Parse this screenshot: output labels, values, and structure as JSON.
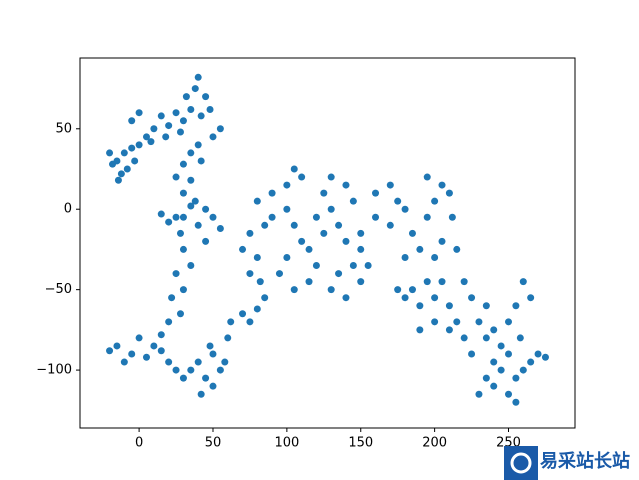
{
  "chart_data": {
    "type": "scatter",
    "color": "#1f77b4",
    "x": [
      -15,
      -10,
      -18,
      -12,
      -5,
      -20,
      -8,
      -14,
      -3,
      0,
      5,
      -5,
      0,
      10,
      15,
      8,
      20,
      25,
      18,
      30,
      28,
      35,
      32,
      38,
      40,
      45,
      48,
      42,
      55,
      50,
      40,
      35,
      42,
      30,
      35,
      25,
      30,
      38,
      45,
      30,
      20,
      28,
      40,
      50,
      55,
      35,
      25,
      15,
      45,
      30,
      35,
      25,
      30,
      22,
      28,
      20,
      15,
      10,
      0,
      -5,
      -15,
      -20,
      -10,
      5,
      15,
      20,
      25,
      30,
      35,
      40,
      45,
      50,
      42,
      55,
      50,
      58,
      48,
      60,
      62,
      70,
      75,
      80,
      85,
      82,
      75,
      80,
      70,
      75,
      85,
      90,
      80,
      90,
      100,
      105,
      110,
      100,
      105,
      110,
      100,
      95,
      105,
      115,
      120,
      115,
      125,
      120,
      130,
      125,
      130,
      140,
      145,
      135,
      140,
      150,
      145,
      135,
      130,
      140,
      150,
      155,
      150,
      160,
      160,
      170,
      175,
      180,
      170,
      185,
      190,
      180,
      195,
      200,
      205,
      195,
      210,
      212,
      205,
      215,
      200,
      195,
      185,
      180,
      175,
      190,
      200,
      205,
      210,
      200,
      190,
      210,
      215,
      220,
      225,
      230,
      225,
      220,
      235,
      240,
      250,
      255,
      260,
      265,
      258,
      250,
      245,
      240,
      235,
      230,
      250,
      255,
      265,
      270,
      275,
      260,
      255,
      245,
      240,
      235
    ],
    "values": [
      30,
      35,
      28,
      22,
      38,
      35,
      25,
      18,
      30,
      40,
      45,
      55,
      60,
      50,
      58,
      42,
      52,
      60,
      45,
      55,
      48,
      62,
      70,
      75,
      82,
      70,
      62,
      58,
      50,
      45,
      40,
      35,
      30,
      28,
      18,
      20,
      10,
      5,
      0,
      -5,
      -8,
      -15,
      -10,
      -5,
      -12,
      2,
      -5,
      -3,
      -20,
      -25,
      -35,
      -40,
      -50,
      -55,
      -65,
      -70,
      -78,
      -85,
      -80,
      -90,
      -85,
      -88,
      -95,
      -92,
      -88,
      -95,
      -100,
      -105,
      -100,
      -95,
      -105,
      -110,
      -115,
      -100,
      -90,
      -95,
      -85,
      -80,
      -70,
      -65,
      -70,
      -62,
      -55,
      -45,
      -40,
      -30,
      -25,
      -15,
      -10,
      -5,
      5,
      10,
      15,
      25,
      20,
      0,
      -10,
      -20,
      -30,
      -40,
      -50,
      -45,
      -35,
      -25,
      -15,
      -5,
      0,
      10,
      20,
      15,
      5,
      -10,
      -20,
      -25,
      -35,
      -40,
      -50,
      -55,
      -45,
      -35,
      -15,
      -5,
      10,
      15,
      5,
      0,
      -10,
      -15,
      -25,
      -30,
      -5,
      5,
      15,
      20,
      10,
      -5,
      -20,
      -25,
      -30,
      -45,
      -50,
      -55,
      -50,
      -60,
      -55,
      -45,
      -60,
      -70,
      -75,
      -75,
      -70,
      -80,
      -90,
      -70,
      -55,
      -45,
      -60,
      -75,
      -70,
      -60,
      -45,
      -55,
      -80,
      -90,
      -100,
      -110,
      -105,
      -115,
      -115,
      -105,
      -95,
      -90,
      -92,
      -100,
      -120,
      -85,
      -95,
      -80
    ],
    "xlim": [
      -40,
      295
    ],
    "ylim": [
      -136,
      94
    ],
    "xticks": [
      0,
      50,
      100,
      150,
      200,
      250
    ],
    "yticks": [
      {
        "value": -100,
        "label": "−100"
      },
      {
        "value": -50,
        "label": "−50"
      },
      0,
      50
    ]
  },
  "watermark": "易采站长站"
}
